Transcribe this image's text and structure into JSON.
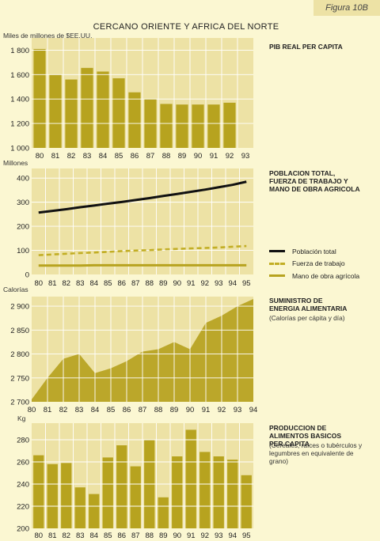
{
  "figure_label": "Figura 10B",
  "title": "CERCANO ORIENTE Y AFRICA DEL NORTE",
  "colors": {
    "bar": "#b7a31f",
    "area": "#bba72a",
    "grid": "#ffffff",
    "panel_bg": "#ede2a5",
    "population": "#111111",
    "labor": "#c2ae25",
    "agri": "#b7a31f"
  },
  "chart_data": [
    {
      "type": "bar",
      "title": "PIB REAL PER CAPITA",
      "ylabel": "Miles de millones de $EE.UU.",
      "categories": [
        "80",
        "81",
        "82",
        "83",
        "84",
        "85",
        "86",
        "87",
        "88",
        "89",
        "90",
        "91",
        "92",
        "93"
      ],
      "values": [
        1810,
        1600,
        1560,
        1655,
        1625,
        1570,
        1455,
        1400,
        1360,
        1355,
        1355,
        1355,
        1370,
        null
      ],
      "ylim": [
        1000,
        1900
      ],
      "yticks": [
        "1 800",
        "1 600",
        "1 400",
        "1 200",
        "1 000"
      ],
      "ytick_values": [
        1800,
        1600,
        1400,
        1200,
        1000
      ],
      "grid": true
    },
    {
      "type": "line",
      "title": "POBLACION TOTAL, FUERZA DE TRABAJO Y MANO DE OBRA AGRICOLA",
      "ylabel": "Millones",
      "categories": [
        "80",
        "81",
        "82",
        "83",
        "84",
        "85",
        "86",
        "87",
        "88",
        "89",
        "90",
        "91",
        "92",
        "93",
        "94",
        "95"
      ],
      "series": [
        {
          "name": "Población total",
          "values": [
            257,
            264,
            271,
            279,
            286,
            294,
            301,
            309,
            317,
            326,
            334,
            343,
            352,
            362,
            372,
            385
          ],
          "style": "solid"
        },
        {
          "name": "Fuerza de trabajo",
          "values": [
            80,
            83,
            86,
            89,
            91,
            94,
            97,
            99,
            101,
            104,
            106,
            108,
            110,
            112,
            115,
            118
          ],
          "style": "dashed"
        },
        {
          "name": "Mano de obra agrícola",
          "values": [
            37,
            37,
            37,
            37,
            38,
            38,
            38,
            38,
            38,
            38,
            38,
            38,
            38,
            38,
            38,
            38
          ],
          "style": "solid"
        }
      ],
      "ylim": [
        0,
        440
      ],
      "yticks": [
        "400",
        "300",
        "200",
        "100",
        "0"
      ],
      "ytick_values": [
        400,
        300,
        200,
        100,
        0
      ],
      "grid": true
    },
    {
      "type": "area",
      "title": "SUMINISTRO DE ENERGIA ALIMENTARIA",
      "subtitle": "(Calorías per cápita y día)",
      "ylabel": "Calorías",
      "categories": [
        "80",
        "81",
        "82",
        "83",
        "84",
        "85",
        "86",
        "87",
        "88",
        "89",
        "90",
        "91",
        "92",
        "93",
        "94"
      ],
      "values": [
        2705,
        2750,
        2790,
        2800,
        2760,
        2770,
        2785,
        2805,
        2810,
        2825,
        2810,
        2865,
        2880,
        2900,
        2915
      ],
      "ylim": [
        2700,
        2920
      ],
      "yticks": [
        "2 900",
        "2 850",
        "2 800",
        "2 750",
        "2 700"
      ],
      "ytick_values": [
        2900,
        2850,
        2800,
        2750,
        2700
      ],
      "grid": true
    },
    {
      "type": "bar",
      "title": "PRODUCCION DE ALIMENTOS BASICOS PER CAPITA",
      "subtitle": "(Cereales, raíces o tubérculos y legumbres en equivalente de grano)",
      "ylabel": "Kg",
      "categories": [
        "80",
        "81",
        "82",
        "83",
        "84",
        "85",
        "86",
        "87",
        "88",
        "89",
        "90",
        "91",
        "92",
        "93",
        "94",
        "95"
      ],
      "values": [
        266,
        258,
        259,
        237,
        231,
        264,
        275,
        256,
        280,
        228,
        265,
        289,
        269,
        265,
        262,
        248
      ],
      "ylim": [
        200,
        295
      ],
      "yticks": [
        "280",
        "260",
        "240",
        "220",
        "200"
      ],
      "ytick_values": [
        280,
        260,
        240,
        220,
        200
      ],
      "grid": true
    }
  ]
}
